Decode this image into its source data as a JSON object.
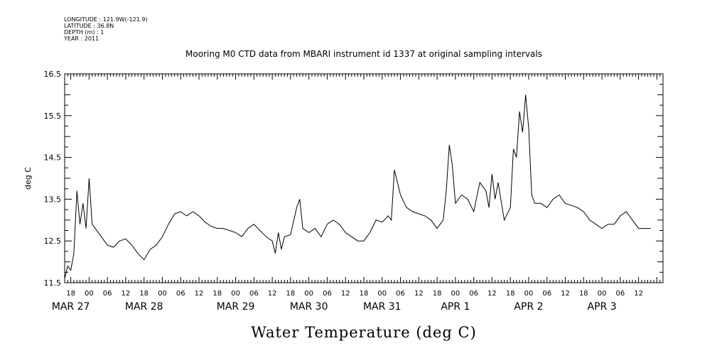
{
  "header": {
    "longitude": "LONGITUDE : 121.9W(-121.9)",
    "latitude": "LATITUDE : 36.8N",
    "depth": "DEPTH (m) : 1",
    "year": "YEAR : 2011"
  },
  "chart_data": {
    "type": "line",
    "title": "Mooring M0 CTD data from MBARI instrument id 1337 at original sampling intervals",
    "xlabel": "Water Temperature (deg C)",
    "ylabel": "deg C",
    "ylim": [
      11.5,
      16.5
    ],
    "yticks": [
      "11.5",
      "12.5",
      "13.5",
      "14.5",
      "15.5",
      "16.5"
    ],
    "x_hour_ticks": [
      {
        "t": "2011-03-26T18:00",
        "label": "18"
      },
      {
        "t": "2011-03-27T00:00",
        "label": "00"
      },
      {
        "t": "2011-03-27T06:00",
        "label": "06"
      },
      {
        "t": "2011-03-27T12:00",
        "label": "12"
      },
      {
        "t": "2011-03-27T18:00",
        "label": "18"
      },
      {
        "t": "2011-03-28T00:00",
        "label": "00"
      },
      {
        "t": "2011-03-28T06:00",
        "label": "06"
      },
      {
        "t": "2011-03-28T12:00",
        "label": "12"
      },
      {
        "t": "2011-03-28T18:00",
        "label": "18"
      },
      {
        "t": "2011-03-29T00:00",
        "label": "00"
      },
      {
        "t": "2011-03-29T06:00",
        "label": "06"
      },
      {
        "t": "2011-03-29T12:00",
        "label": "12"
      },
      {
        "t": "2011-03-29T18:00",
        "label": "18"
      },
      {
        "t": "2011-03-30T00:00",
        "label": "00"
      },
      {
        "t": "2011-03-30T06:00",
        "label": "06"
      },
      {
        "t": "2011-03-30T12:00",
        "label": "12"
      },
      {
        "t": "2011-03-30T18:00",
        "label": "18"
      },
      {
        "t": "2011-03-31T00:00",
        "label": "00"
      },
      {
        "t": "2011-03-31T06:00",
        "label": "06"
      },
      {
        "t": "2011-03-31T12:00",
        "label": "12"
      },
      {
        "t": "2011-03-31T18:00",
        "label": "18"
      },
      {
        "t": "2011-04-01T00:00",
        "label": "00"
      },
      {
        "t": "2011-04-01T06:00",
        "label": "06"
      },
      {
        "t": "2011-04-01T12:00",
        "label": "12"
      },
      {
        "t": "2011-04-01T18:00",
        "label": "18"
      },
      {
        "t": "2011-04-02T00:00",
        "label": "00"
      },
      {
        "t": "2011-04-02T06:00",
        "label": "06"
      },
      {
        "t": "2011-04-02T12:00",
        "label": "12"
      },
      {
        "t": "2011-04-02T18:00",
        "label": "18"
      },
      {
        "t": "2011-04-03T00:00",
        "label": "00"
      },
      {
        "t": "2011-04-03T06:00",
        "label": "06"
      },
      {
        "t": "2011-04-03T12:00",
        "label": "12"
      }
    ],
    "x_day_labels": [
      {
        "t": "2011-03-26T18:00",
        "label": "MAR 27"
      },
      {
        "t": "2011-03-27T18:00",
        "label": "MAR 28"
      },
      {
        "t": "2011-03-29T00:00",
        "label": "MAR 29"
      },
      {
        "t": "2011-03-30T00:00",
        "label": "MAR 30"
      },
      {
        "t": "2011-03-31T00:00",
        "label": "MAR 31"
      },
      {
        "t": "2011-04-01T00:00",
        "label": "APR  1"
      },
      {
        "t": "2011-04-02T00:00",
        "label": "APR  2"
      },
      {
        "t": "2011-04-03T00:00",
        "label": "APR  3"
      }
    ],
    "x": [
      "2011-03-26T16:00",
      "2011-03-26T17:00",
      "2011-03-26T18:00",
      "2011-03-26T19:00",
      "2011-03-26T20:00",
      "2011-03-26T21:00",
      "2011-03-26T22:00",
      "2011-03-26T23:00",
      "2011-03-27T00:00",
      "2011-03-27T01:00",
      "2011-03-27T02:00",
      "2011-03-27T03:00",
      "2011-03-27T04:00",
      "2011-03-27T06:00",
      "2011-03-27T08:00",
      "2011-03-27T10:00",
      "2011-03-27T12:00",
      "2011-03-27T14:00",
      "2011-03-27T16:00",
      "2011-03-27T18:00",
      "2011-03-27T20:00",
      "2011-03-27T22:00",
      "2011-03-28T00:00",
      "2011-03-28T02:00",
      "2011-03-28T04:00",
      "2011-03-28T06:00",
      "2011-03-28T08:00",
      "2011-03-28T10:00",
      "2011-03-28T12:00",
      "2011-03-28T14:00",
      "2011-03-28T16:00",
      "2011-03-28T18:00",
      "2011-03-28T20:00",
      "2011-03-28T22:00",
      "2011-03-29T00:00",
      "2011-03-29T02:00",
      "2011-03-29T04:00",
      "2011-03-29T06:00",
      "2011-03-29T08:00",
      "2011-03-29T10:00",
      "2011-03-29T12:00",
      "2011-03-29T13:00",
      "2011-03-29T14:00",
      "2011-03-29T15:00",
      "2011-03-29T16:00",
      "2011-03-29T18:00",
      "2011-03-29T20:00",
      "2011-03-29T21:00",
      "2011-03-29T22:00",
      "2011-03-30T00:00",
      "2011-03-30T02:00",
      "2011-03-30T04:00",
      "2011-03-30T06:00",
      "2011-03-30T08:00",
      "2011-03-30T10:00",
      "2011-03-30T12:00",
      "2011-03-30T14:00",
      "2011-03-30T16:00",
      "2011-03-30T18:00",
      "2011-03-30T20:00",
      "2011-03-30T22:00",
      "2011-03-31T00:00",
      "2011-03-31T02:00",
      "2011-03-31T03:00",
      "2011-03-31T04:00",
      "2011-03-31T06:00",
      "2011-03-31T08:00",
      "2011-03-31T10:00",
      "2011-03-31T12:00",
      "2011-03-31T14:00",
      "2011-03-31T16:00",
      "2011-03-31T18:00",
      "2011-03-31T20:00",
      "2011-03-31T21:00",
      "2011-03-31T22:00",
      "2011-03-31T23:00",
      "2011-04-01T00:00",
      "2011-04-01T02:00",
      "2011-04-01T04:00",
      "2011-04-01T06:00",
      "2011-04-01T08:00",
      "2011-04-01T10:00",
      "2011-04-01T11:00",
      "2011-04-01T12:00",
      "2011-04-01T13:00",
      "2011-04-01T14:00",
      "2011-04-01T16:00",
      "2011-04-01T18:00",
      "2011-04-01T19:00",
      "2011-04-01T20:00",
      "2011-04-01T21:00",
      "2011-04-01T22:00",
      "2011-04-01T23:00",
      "2011-04-02T00:00",
      "2011-04-02T01:00",
      "2011-04-02T02:00",
      "2011-04-02T04:00",
      "2011-04-02T06:00",
      "2011-04-02T08:00",
      "2011-04-02T10:00",
      "2011-04-02T12:00",
      "2011-04-02T14:00",
      "2011-04-02T16:00",
      "2011-04-02T18:00",
      "2011-04-02T20:00",
      "2011-04-02T22:00",
      "2011-04-03T00:00",
      "2011-04-03T02:00",
      "2011-04-03T04:00",
      "2011-04-03T06:00",
      "2011-04-03T08:00",
      "2011-04-03T10:00",
      "2011-04-03T12:00",
      "2011-04-03T14:00",
      "2011-04-03T16:00"
    ],
    "y": [
      11.6,
      11.9,
      11.8,
      12.2,
      13.7,
      12.9,
      13.4,
      12.8,
      14.0,
      12.9,
      12.8,
      12.7,
      12.6,
      12.4,
      12.35,
      12.5,
      12.55,
      12.4,
      12.2,
      12.05,
      12.3,
      12.4,
      12.6,
      12.9,
      13.15,
      13.2,
      13.1,
      13.2,
      13.1,
      12.95,
      12.85,
      12.8,
      12.8,
      12.75,
      12.7,
      12.6,
      12.8,
      12.9,
      12.75,
      12.6,
      12.5,
      12.2,
      12.7,
      12.3,
      12.6,
      12.65,
      13.3,
      13.5,
      12.8,
      12.7,
      12.8,
      12.6,
      12.9,
      13.0,
      12.9,
      12.7,
      12.6,
      12.5,
      12.5,
      12.7,
      13.0,
      12.95,
      13.1,
      13.0,
      14.2,
      13.6,
      13.3,
      13.2,
      13.15,
      13.1,
      13.0,
      12.8,
      13.0,
      13.7,
      14.8,
      14.3,
      13.4,
      13.6,
      13.5,
      13.2,
      13.9,
      13.7,
      13.3,
      14.1,
      13.5,
      13.9,
      13.0,
      13.3,
      14.7,
      14.5,
      15.6,
      15.1,
      16.0,
      15.2,
      13.6,
      13.4,
      13.4,
      13.3,
      13.5,
      13.6,
      13.4,
      13.35,
      13.3,
      13.2,
      13.0,
      12.9,
      12.8,
      12.9,
      12.9,
      13.1,
      13.2,
      13.0,
      12.8,
      12.8,
      12.8
    ],
    "grid": false,
    "line_color": "#000000"
  }
}
